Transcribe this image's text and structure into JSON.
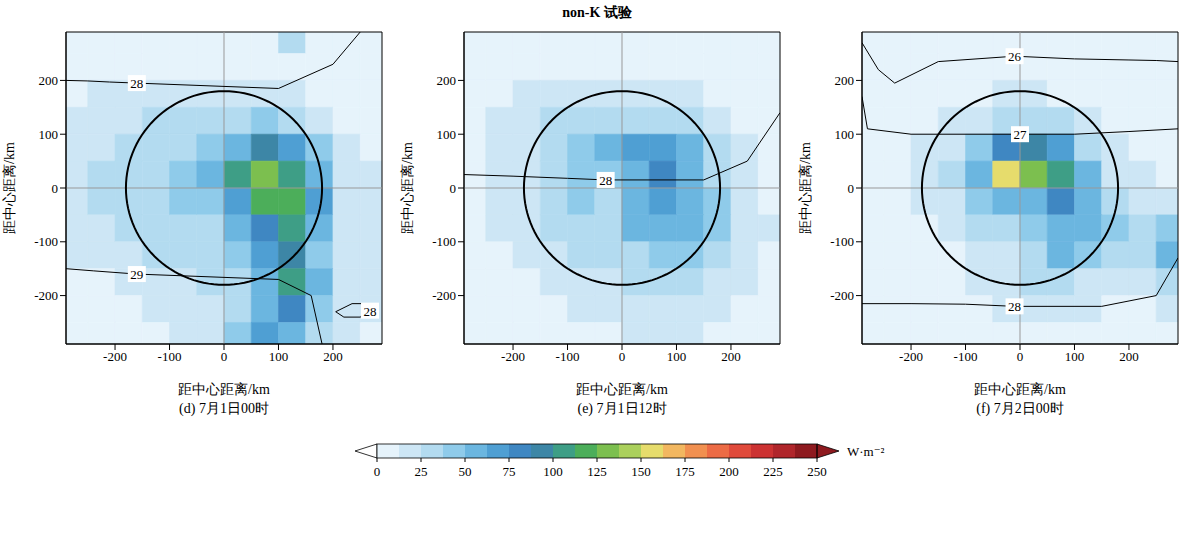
{
  "title": "non-K 试验",
  "chart_data": [
    {
      "type": "heatmap",
      "title": "(d) 7月1日00时",
      "x_label": "距中心距离/km",
      "y_label": "距中心距离/km",
      "xlim": [
        -290,
        290
      ],
      "ylim": [
        -290,
        290
      ],
      "xticks": [
        -200,
        -100,
        0,
        100,
        200
      ],
      "yticks": [
        -200,
        -100,
        0,
        100,
        200
      ],
      "grid": false,
      "circle_radius": 180,
      "cells": {
        "x": [
          -275,
          -225,
          -175,
          -125,
          -75,
          -25,
          25,
          75,
          125,
          175,
          225,
          275
        ],
        "y": [
          275,
          225,
          175,
          125,
          75,
          25,
          -25,
          -75,
          -125,
          -175,
          -225,
          -275
        ],
        "values": [
          [
            10,
            10,
            10,
            10,
            10,
            10,
            10,
            10,
            30,
            10,
            10,
            10
          ],
          [
            10,
            10,
            10,
            10,
            10,
            10,
            10,
            10,
            10,
            10,
            10,
            10
          ],
          [
            10,
            15,
            15,
            15,
            20,
            20,
            20,
            15,
            15,
            10,
            10,
            10
          ],
          [
            15,
            15,
            20,
            25,
            30,
            35,
            35,
            40,
            30,
            20,
            10,
            10
          ],
          [
            15,
            20,
            25,
            35,
            35,
            40,
            60,
            90,
            70,
            40,
            15,
            10
          ],
          [
            20,
            25,
            30,
            35,
            45,
            50,
            110,
            130,
            110,
            60,
            20,
            15
          ],
          [
            20,
            25,
            30,
            35,
            40,
            40,
            70,
            120,
            120,
            70,
            20,
            15
          ],
          [
            15,
            20,
            25,
            30,
            35,
            35,
            50,
            80,
            100,
            50,
            20,
            15
          ],
          [
            15,
            15,
            20,
            25,
            25,
            30,
            40,
            70,
            90,
            40,
            15,
            15
          ],
          [
            10,
            10,
            15,
            20,
            20,
            25,
            35,
            60,
            100,
            50,
            15,
            20
          ],
          [
            10,
            10,
            10,
            15,
            15,
            20,
            35,
            60,
            80,
            40,
            15,
            15
          ],
          [
            10,
            10,
            10,
            10,
            15,
            20,
            40,
            70,
            60,
            30,
            15,
            10
          ]
        ]
      },
      "contours": [
        {
          "level": 28,
          "x": [
            -290,
            -250,
            -210,
            -160,
            100,
            200,
            250
          ],
          "y": [
            200,
            199,
            197,
            195,
            185,
            230,
            290
          ]
        },
        {
          "level": 29,
          "x": [
            -290,
            -240,
            -200,
            -160,
            100,
            160,
            180
          ],
          "y": [
            -150,
            -154,
            -157,
            -160,
            -170,
            -200,
            -290
          ]
        },
        {
          "level": 28,
          "x": [
            205,
            220,
            250,
            268,
            260,
            235,
            205
          ],
          "y": [
            -230,
            -240,
            -240,
            -228,
            -215,
            -215,
            -230
          ]
        }
      ]
    },
    {
      "type": "heatmap",
      "title": "(e) 7月1日12时",
      "x_label": "距中心距离/km",
      "y_label": "距中心距离/km",
      "xlim": [
        -290,
        290
      ],
      "ylim": [
        -290,
        290
      ],
      "xticks": [
        -200,
        -100,
        0,
        100,
        200
      ],
      "yticks": [
        -200,
        -100,
        0,
        100,
        200
      ],
      "grid": false,
      "circle_radius": 180,
      "cells": {
        "x": [
          -275,
          -225,
          -175,
          -125,
          -75,
          -25,
          25,
          75,
          125,
          175,
          225,
          275
        ],
        "y": [
          275,
          225,
          175,
          125,
          75,
          25,
          -25,
          -75,
          -125,
          -175,
          -225,
          -275
        ],
        "values": [
          [
            10,
            10,
            10,
            10,
            10,
            10,
            10,
            10,
            10,
            10,
            10,
            10
          ],
          [
            10,
            10,
            10,
            10,
            10,
            10,
            10,
            10,
            10,
            10,
            10,
            10
          ],
          [
            10,
            10,
            15,
            15,
            20,
            20,
            20,
            20,
            15,
            10,
            10,
            10
          ],
          [
            10,
            15,
            20,
            25,
            30,
            35,
            35,
            30,
            25,
            15,
            10,
            10
          ],
          [
            10,
            15,
            20,
            30,
            40,
            55,
            70,
            70,
            50,
            25,
            15,
            10
          ],
          [
            10,
            15,
            20,
            35,
            45,
            40,
            60,
            80,
            60,
            35,
            15,
            10
          ],
          [
            10,
            15,
            20,
            30,
            40,
            35,
            60,
            70,
            55,
            40,
            20,
            10
          ],
          [
            10,
            15,
            20,
            25,
            30,
            35,
            50,
            55,
            50,
            40,
            20,
            15
          ],
          [
            10,
            10,
            15,
            20,
            25,
            30,
            35,
            40,
            40,
            30,
            15,
            10
          ],
          [
            10,
            10,
            10,
            15,
            20,
            20,
            25,
            25,
            25,
            20,
            15,
            10
          ],
          [
            10,
            10,
            10,
            10,
            15,
            15,
            20,
            20,
            20,
            15,
            10,
            10
          ],
          [
            10,
            10,
            10,
            10,
            10,
            10,
            15,
            15,
            15,
            10,
            10,
            10
          ]
        ]
      },
      "contours": [
        {
          "level": 28,
          "x": [
            -290,
            -200,
            -100,
            -30,
            150,
            230,
            290
          ],
          "y": [
            25,
            22,
            18,
            15,
            15,
            50,
            140
          ]
        }
      ]
    },
    {
      "type": "heatmap",
      "title": "(f) 7月2日00时",
      "x_label": "距中心距离/km",
      "y_label": "距中心距离/km",
      "xlim": [
        -290,
        290
      ],
      "ylim": [
        -290,
        290
      ],
      "xticks": [
        -200,
        -100,
        0,
        100,
        200
      ],
      "yticks": [
        -200,
        -100,
        0,
        100,
        200
      ],
      "grid": false,
      "circle_radius": 180,
      "cells": {
        "x": [
          -275,
          -225,
          -175,
          -125,
          -75,
          -25,
          25,
          75,
          125,
          175,
          225,
          275
        ],
        "y": [
          275,
          225,
          175,
          125,
          75,
          25,
          -25,
          -75,
          -125,
          -175,
          -225,
          -275
        ],
        "values": [
          [
            10,
            10,
            10,
            10,
            10,
            10,
            10,
            10,
            10,
            10,
            10,
            10
          ],
          [
            10,
            10,
            10,
            10,
            10,
            10,
            10,
            10,
            10,
            10,
            10,
            10
          ],
          [
            10,
            10,
            10,
            10,
            10,
            15,
            15,
            10,
            10,
            10,
            10,
            10
          ],
          [
            10,
            10,
            10,
            15,
            20,
            30,
            30,
            25,
            15,
            10,
            10,
            10
          ],
          [
            10,
            10,
            15,
            20,
            40,
            80,
            90,
            70,
            35,
            15,
            10,
            10
          ],
          [
            10,
            10,
            15,
            25,
            60,
            150,
            130,
            110,
            50,
            20,
            15,
            10
          ],
          [
            10,
            10,
            15,
            20,
            45,
            60,
            50,
            80,
            60,
            30,
            20,
            20
          ],
          [
            10,
            10,
            10,
            15,
            25,
            35,
            40,
            60,
            60,
            40,
            30,
            40
          ],
          [
            10,
            10,
            10,
            10,
            15,
            20,
            30,
            50,
            40,
            25,
            30,
            50
          ],
          [
            10,
            10,
            10,
            10,
            15,
            20,
            30,
            35,
            20,
            15,
            20,
            35
          ],
          [
            10,
            10,
            10,
            10,
            10,
            15,
            20,
            20,
            15,
            10,
            10,
            20
          ],
          [
            10,
            10,
            10,
            10,
            10,
            10,
            10,
            10,
            10,
            10,
            10,
            10
          ]
        ]
      },
      "contours": [
        {
          "level": 26,
          "x": [
            -290,
            -260,
            -230,
            -150,
            -10,
            100,
            200,
            250,
            290
          ],
          "y": [
            270,
            220,
            195,
            235,
            245,
            240,
            238,
            237,
            235
          ]
        },
        {
          "level": 27,
          "x": [
            -290,
            -280,
            -200,
            0,
            100,
            200,
            290
          ],
          "y": [
            170,
            110,
            100,
            100,
            100,
            105,
            110
          ]
        },
        {
          "level": 28,
          "x": [
            -290,
            -200,
            -100,
            -10,
            150,
            250,
            290
          ],
          "y": [
            -215,
            -215,
            -216,
            -220,
            -220,
            -200,
            -130
          ]
        }
      ]
    }
  ],
  "colorbar": {
    "label": "W·m⁻²",
    "levels": [
      0,
      12.5,
      25,
      37.5,
      50,
      62.5,
      75,
      87.5,
      100,
      112.5,
      125,
      137.5,
      150,
      162.5,
      175,
      187.5,
      200,
      212.5,
      225,
      237.5,
      250
    ],
    "ticks": [
      0,
      25,
      50,
      75,
      100,
      125,
      150,
      175,
      200,
      225,
      250
    ],
    "colors": [
      "#e6f3fb",
      "#cde6f5",
      "#b3dbf0",
      "#8fcbea",
      "#6bb6e0",
      "#4f9fd3",
      "#3f87c2",
      "#3d86a6",
      "#3e9e86",
      "#4cae5a",
      "#7cbf4f",
      "#abd05c",
      "#e6dc6c",
      "#f2b760",
      "#f19050",
      "#ec6b45",
      "#e04a3b",
      "#cc3232",
      "#b0262b",
      "#8e1a1f"
    ]
  }
}
